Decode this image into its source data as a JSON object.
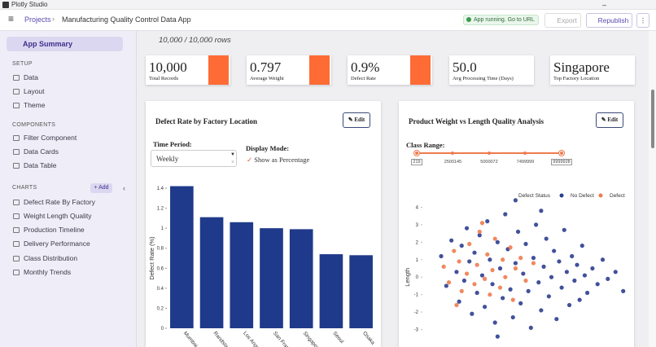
{
  "window": {
    "title": "Plotly Studio"
  },
  "header": {
    "breadcrumb": [
      "Projects",
      "Manufacturing Quality Control Data App"
    ],
    "status": "App running. Go to URL",
    "export": "Export",
    "republish": "Republish"
  },
  "sidebar": {
    "active": "App Summary",
    "sections": [
      {
        "title": "SETUP",
        "items": [
          "Data",
          "Layout",
          "Theme"
        ]
      },
      {
        "title": "COMPONENTS",
        "items": [
          "Filter Component",
          "Data Cards",
          "Data Table"
        ]
      },
      {
        "title": "CHARTS",
        "action": "Add",
        "items": [
          "Defect Rate By Factory",
          "Weight Length Quality",
          "Production Timeline",
          "Delivery Performance",
          "Class Distribution",
          "Monthly Trends"
        ]
      }
    ]
  },
  "rows": "10,000 / 10,000 rows",
  "cards": [
    {
      "value": "10,000",
      "label": "Total Records"
    },
    {
      "value": "0.797",
      "label": "Average Weight"
    },
    {
      "value": "0.9%",
      "label": "Defect Rate"
    },
    {
      "value": "50.0",
      "label": "Avg Processing Time (Days)"
    },
    {
      "value": "Singapore",
      "label": "Top Factory Location"
    }
  ],
  "chart_data": [
    {
      "type": "bar",
      "title": "Defect Rate by Factory Location",
      "edit": "Edit",
      "time_period_label": "Time Period:",
      "time_period": "Weekly",
      "display_mode_label": "Display Mode:",
      "display_mode_option": "Show as Percentage",
      "y_label": "Defect Rate (%)",
      "categories": [
        "Mumbai",
        "Randstad",
        "Los Angel",
        "San Franci",
        "Singapore",
        "Seoul",
        "Osaka"
      ],
      "values": [
        1.42,
        1.11,
        1.06,
        1.0,
        0.99,
        0.74,
        0.73
      ],
      "color": "#1f3a8a",
      "ylim": [
        0,
        1.5
      ],
      "yticks": [
        0,
        0.2,
        0.4,
        0.6,
        0.8,
        1,
        1.2,
        1.4
      ]
    },
    {
      "type": "scatter",
      "title": "Product Weight vs Length Quality Analysis",
      "edit": "Edit",
      "range_label": "Class Range:",
      "range": [
        219,
        9999928
      ],
      "range_marks": [
        219,
        2500145,
        5000072,
        7499999,
        9999928
      ],
      "y_label": "Length",
      "legend_title": "Defect Status",
      "xlim": [
        -4,
        4
      ],
      "ylim": [
        -4,
        5
      ],
      "yticks": [
        -3,
        -2,
        -1,
        0,
        1,
        2,
        3,
        4
      ],
      "series": [
        {
          "name": "No Defect",
          "color": "#2c3e8f",
          "x": [
            -3.3,
            -3.1,
            -2.9,
            -2.7,
            -2.6,
            -2.5,
            -2.4,
            -2.3,
            -2.2,
            -2.1,
            -2.0,
            -1.9,
            -1.8,
            -1.7,
            -1.6,
            -1.5,
            -1.4,
            -1.3,
            -1.2,
            -1.1,
            -1.0,
            -0.9,
            -0.8,
            -0.7,
            -0.6,
            -0.5,
            -0.4,
            -0.3,
            -0.2,
            -0.1,
            0.0,
            0.1,
            0.2,
            0.3,
            0.4,
            0.5,
            0.6,
            0.7,
            0.8,
            0.9,
            1.0,
            1.1,
            1.2,
            1.3,
            1.4,
            1.5,
            1.6,
            1.7,
            1.8,
            1.9,
            2.0,
            2.1,
            2.2,
            2.3,
            2.4,
            2.6,
            2.8,
            3.0,
            3.2,
            3.5,
            3.8,
            -0.4,
            -1.1,
            0.6
          ],
          "values": [
            1.2,
            -0.5,
            2.1,
            0.3,
            -1.4,
            1.8,
            -0.2,
            2.8,
            0.9,
            -2.1,
            1.4,
            -0.9,
            2.4,
            0.1,
            -1.7,
            3.2,
            1.0,
            -0.4,
            -2.6,
            2.0,
            0.5,
            -1.2,
            3.6,
            1.6,
            -0.7,
            -2.3,
            0.8,
            2.6,
            -1.5,
            0.2,
            1.9,
            -0.8,
            -2.9,
            1.1,
            3.0,
            -0.3,
            -1.9,
            0.6,
            2.2,
            -1.1,
            0.0,
            1.5,
            -2.4,
            0.9,
            -0.6,
            2.7,
            0.3,
            -1.6,
            1.2,
            -0.2,
            0.7,
            -1.3,
            1.8,
            0.1,
            -0.9,
            0.5,
            -0.4,
            1.0,
            -0.1,
            0.3,
            -0.8,
            4.4,
            -3.4,
            3.8
          ]
        },
        {
          "name": "Defect",
          "color": "#ef7b4f",
          "x": [
            -3.2,
            -3.0,
            -2.8,
            -2.6,
            -2.5,
            -2.3,
            -2.2,
            -2.0,
            -1.9,
            -1.8,
            -1.6,
            -1.5,
            -1.4,
            -1.3,
            -1.2,
            -1.0,
            -0.9,
            -0.8,
            -0.6,
            -0.5,
            -0.4,
            -0.2,
            0.0,
            0.3,
            -2.7,
            -1.7
          ],
          "values": [
            0.6,
            -0.3,
            1.5,
            0.9,
            -0.8,
            0.2,
            1.9,
            -0.4,
            0.7,
            2.6,
            -0.1,
            1.3,
            -1.0,
            0.4,
            2.2,
            -0.6,
            1.0,
            0.0,
            1.7,
            -1.3,
            0.5,
            1.1,
            -0.2,
            0.8,
            -1.6,
            3.1
          ]
        }
      ]
    }
  ]
}
